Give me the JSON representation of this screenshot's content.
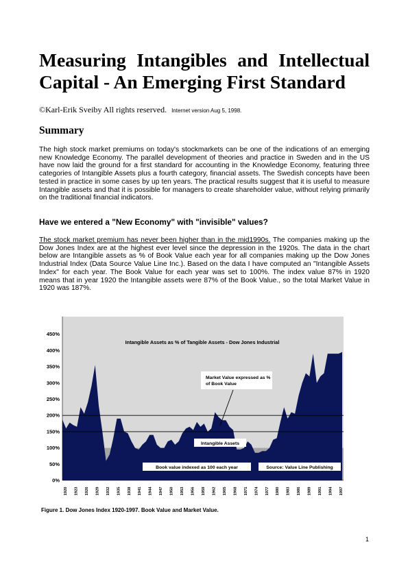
{
  "title_line1": "Measuring Intangibles and Intellectual",
  "title_line2": "Capital - An Emerging First Standard",
  "byline": {
    "author": "©Karl-Erik Sveiby All rights reserved.",
    "version": "Internet version Aug 5, 1998."
  },
  "summary_heading": "Summary",
  "summary_text": "The high stock market premiums on today's stockmarkets can be one of the indications of an emerging new Knowledge Economy. The parallel development of theories and practice in Sweden and in the US have now laid the ground for a first standard for accounting in the Knowledge Economy, featuring three categories of Intangible Assets plus a fourth category, financial assets. The Swedish concepts have been tested in practice in some cases by up ten years. The practical results suggest that it is useful to measure Intangible assets and that it is possible for managers to create shareholder value, without relying primarily on the traditional financial indicators.",
  "section_heading": "Have we entered a \"New Economy\" with \"invisible\" values?",
  "section_text_underlined": "The stock market premium has never been higher than in the mid1990s.",
  "section_text_rest": " The companies making up the Dow Jones Index are at the highest ever level since the depression in the 1920s. The data in the chart below are Intangible assets as % of Book Value each year for all companies making up the Dow Jones Industrial Index (Data Source Value Line Inc.). Based on the data I have computed an \"Intangible Assets Index\" for each year. The Book Value for each year was set to 100%. The index value 87% in 1920 means that in year 1920 the Intangible assets were 87% of the Book Value., so the total Market Value in 1920 was 187%.",
  "chart_data": {
    "type": "area",
    "title": "Intangible Assets as % of Tangible Assets - Dow Jones Industrial",
    "annotation": "Market Value expressed as % of Book Value",
    "annotation_line1": "Market Value expressed as %",
    "annotation_line2": "of Book Value",
    "label_intangible": "Intangible Assets",
    "label_book": "Book value indexed as 100 each year",
    "source": "Source: Value Line Publishing",
    "ylim": [
      0,
      500
    ],
    "yticks": [
      0,
      50,
      100,
      150,
      200,
      250,
      300,
      350,
      400,
      450
    ],
    "ytick_labels": [
      "0%",
      "50%",
      "100%",
      "150%",
      "200%",
      "250%",
      "300%",
      "350%",
      "400%",
      "450%"
    ],
    "reference_lines": [
      150,
      200
    ],
    "book_value": 100,
    "x_tick_labels": [
      "1920",
      "1923",
      "1926",
      "1929",
      "1932",
      "1935",
      "1938",
      "1941",
      "1944",
      "1947",
      "1950",
      "1953",
      "1956",
      "1959",
      "1962",
      "1965",
      "1968",
      "1971",
      "1974",
      "1977",
      "1980",
      "1983",
      "1986",
      "1989",
      "1991",
      "1994",
      "1997"
    ],
    "series": [
      {
        "name": "Market Value expressed as % of Book Value",
        "x": [
          1920,
          1921,
          1922,
          1923,
          1924,
          1925,
          1926,
          1927,
          1928,
          1929,
          1930,
          1931,
          1932,
          1933,
          1934,
          1935,
          1936,
          1937,
          1938,
          1939,
          1940,
          1941,
          1942,
          1943,
          1944,
          1945,
          1946,
          1947,
          1948,
          1949,
          1950,
          1951,
          1952,
          1953,
          1954,
          1955,
          1956,
          1957,
          1958,
          1959,
          1960,
          1961,
          1962,
          1963,
          1964,
          1965,
          1966,
          1967,
          1968,
          1969,
          1970,
          1971,
          1972,
          1973,
          1974,
          1975,
          1976,
          1977,
          1978,
          1979,
          1980,
          1981,
          1982,
          1983,
          1984,
          1985,
          1986,
          1987,
          1988,
          1989,
          1990,
          1991,
          1992,
          1993,
          1994,
          1995,
          1996,
          1997
        ],
        "y": [
          187,
          160,
          178,
          170,
          165,
          225,
          205,
          240,
          290,
          355,
          230,
          150,
          60,
          80,
          130,
          190,
          190,
          150,
          145,
          120,
          100,
          95,
          110,
          120,
          140,
          140,
          110,
          100,
          100,
          120,
          125,
          110,
          120,
          145,
          160,
          165,
          155,
          180,
          165,
          175,
          150,
          160,
          210,
          195,
          185,
          185,
          165,
          155,
          95,
          95,
          100,
          120,
          110,
          85,
          85,
          90,
          90,
          100,
          125,
          130,
          180,
          225,
          190,
          210,
          205,
          260,
          300,
          330,
          320,
          390,
          300,
          320,
          330,
          390,
          390,
          390,
          390,
          395
        ]
      }
    ]
  },
  "figure_caption": "Figure 1. Dow Jones Index 1920-1997. Book Value and Market Value.",
  "page_number": "1"
}
